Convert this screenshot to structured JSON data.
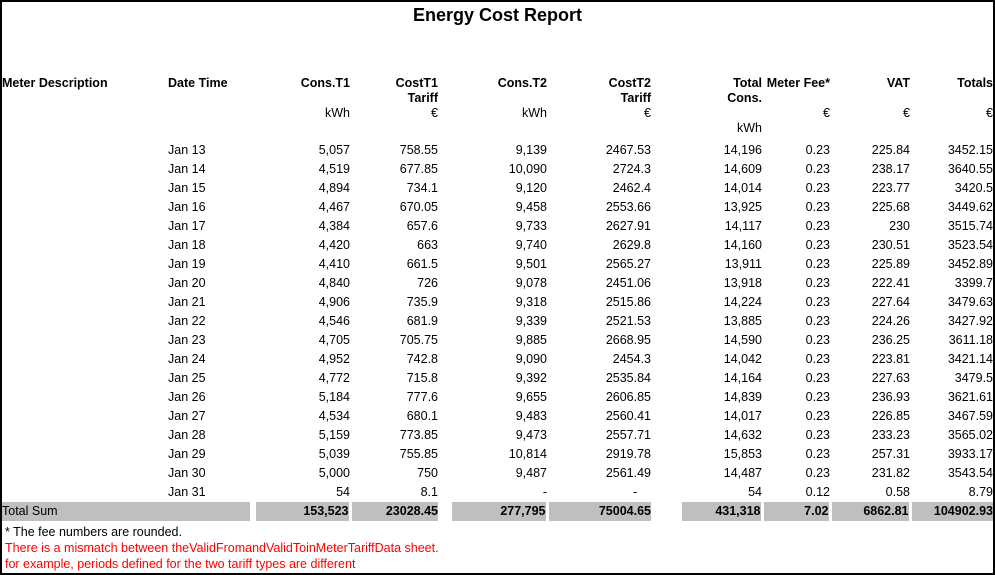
{
  "title": "Energy Cost Report",
  "colors": {
    "warning_red": "#FF0000",
    "total_row_gray": "#BFBFBF"
  },
  "table": {
    "headers": {
      "meter_description": "Meter Description",
      "date_time": "Date Time",
      "cons_t1": "Cons.T1",
      "cost_t1_line1": "CostT1",
      "cost_t1_line2": "Tariff",
      "cons_t2": "Cons.T2",
      "cost_t2_line1": "CostT2",
      "cost_t2_line2": "Tariff",
      "total_cons_line1": "Total",
      "total_cons_line2": "Cons.",
      "meter_fee": "Meter Fee*",
      "vat": "VAT",
      "totals": "Totals"
    },
    "units": {
      "cons_t1": "kWh",
      "cost_t1": "€",
      "cons_t2": "kWh",
      "cost_t2": "€",
      "total_cons": "kWh",
      "meter_fee": "€",
      "vat": "€",
      "totals": "€"
    },
    "rows": [
      [
        "Jan 13",
        "5,057",
        "758.55",
        "9,139",
        "2467.53",
        "14,196",
        "0.23",
        "225.84",
        "3452.15"
      ],
      [
        "Jan 14",
        "4,519",
        "677.85",
        "10,090",
        "2724.3",
        "14,609",
        "0.23",
        "238.17",
        "3640.55"
      ],
      [
        "Jan 15",
        "4,894",
        "734.1",
        "9,120",
        "2462.4",
        "14,014",
        "0.23",
        "223.77",
        "3420.5"
      ],
      [
        "Jan 16",
        "4,467",
        "670.05",
        "9,458",
        "2553.66",
        "13,925",
        "0.23",
        "225.68",
        "3449.62"
      ],
      [
        "Jan 17",
        "4,384",
        "657.6",
        "9,733",
        "2627.91",
        "14,117",
        "0.23",
        "230",
        "3515.74"
      ],
      [
        "Jan 18",
        "4,420",
        "663",
        "9,740",
        "2629.8",
        "14,160",
        "0.23",
        "230.51",
        "3523.54"
      ],
      [
        "Jan 19",
        "4,410",
        "661.5",
        "9,501",
        "2565.27",
        "13,911",
        "0.23",
        "225.89",
        "3452.89"
      ],
      [
        "Jan 20",
        "4,840",
        "726",
        "9,078",
        "2451.06",
        "13,918",
        "0.23",
        "222.41",
        "3399.7"
      ],
      [
        "Jan 21",
        "4,906",
        "735.9",
        "9,318",
        "2515.86",
        "14,224",
        "0.23",
        "227.64",
        "3479.63"
      ],
      [
        "Jan 22",
        "4,546",
        "681.9",
        "9,339",
        "2521.53",
        "13,885",
        "0.23",
        "224.26",
        "3427.92"
      ],
      [
        "Jan 23",
        "4,705",
        "705.75",
        "9,885",
        "2668.95",
        "14,590",
        "0.23",
        "236.25",
        "3611.18"
      ],
      [
        "Jan 24",
        "4,952",
        "742.8",
        "9,090",
        "2454.3",
        "14,042",
        "0.23",
        "223.81",
        "3421.14"
      ],
      [
        "Jan 25",
        "4,772",
        "715.8",
        "9,392",
        "2535.84",
        "14,164",
        "0.23",
        "227.63",
        "3479.5"
      ],
      [
        "Jan 26",
        "5,184",
        "777.6",
        "9,655",
        "2606.85",
        "14,839",
        "0.23",
        "236.93",
        "3621.61"
      ],
      [
        "Jan 27",
        "4,534",
        "680.1",
        "9,483",
        "2560.41",
        "14,017",
        "0.23",
        "226.85",
        "3467.59"
      ],
      [
        "Jan 28",
        "5,159",
        "773.85",
        "9,473",
        "2557.71",
        "14,632",
        "0.23",
        "233.23",
        "3565.02"
      ],
      [
        "Jan 29",
        "5,039",
        "755.85",
        "10,814",
        "2919.78",
        "15,853",
        "0.23",
        "257.31",
        "3933.17"
      ],
      [
        "Jan 30",
        "5,000",
        "750",
        "9,487",
        "2561.49",
        "14,487",
        "0.23",
        "231.82",
        "3543.54"
      ],
      [
        "Jan 31",
        "54",
        "8.1",
        "-",
        "-    ",
        "54",
        "0.12",
        "0.58",
        "8.79"
      ]
    ],
    "total_row": {
      "label": "Total Sum",
      "values": [
        "153,523",
        "23028.45",
        "277,795",
        "75004.65",
        "431,318",
        "7.02",
        "6862.81",
        "104902.93"
      ]
    }
  },
  "footnotes": {
    "fee_note": "* The fee numbers are rounded.",
    "warning_line1": "There is a mismatch between theValidFromandValidToinMeterTariffData sheet.",
    "warning_line2": "for example, periods defined for the two tariff types are different"
  }
}
